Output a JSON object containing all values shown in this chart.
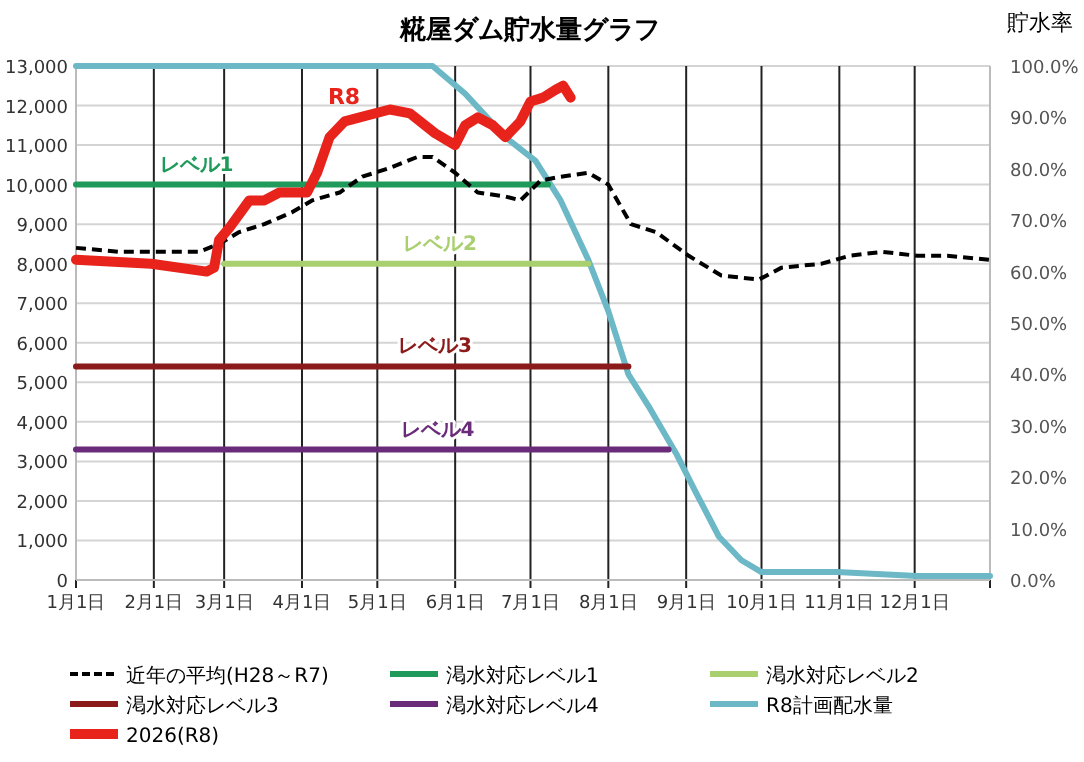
{
  "chart_data": {
    "type": "line",
    "title": "糀屋ダム貯水量グラフ",
    "y2label": "貯水率",
    "xlim": [
      "--01-01",
      "--12-31"
    ],
    "xticks": [
      {
        "value": "--01-01",
        "label": "1月1日"
      },
      {
        "value": "--02-01",
        "label": "2月1日"
      },
      {
        "value": "--03-01",
        "label": "3月1日"
      },
      {
        "value": "--04-01",
        "label": "4月1日"
      },
      {
        "value": "--05-01",
        "label": "5月1日"
      },
      {
        "value": "--06-01",
        "label": "6月1日"
      },
      {
        "value": "--07-01",
        "label": "7月1日"
      },
      {
        "value": "--08-01",
        "label": "8月1日"
      },
      {
        "value": "--09-01",
        "label": "9月1日"
      },
      {
        "value": "--10-01",
        "label": "10月1日"
      },
      {
        "value": "--11-01",
        "label": "11月1日"
      },
      {
        "value": "--12-01",
        "label": "12月1日"
      },
      {
        "value": "--12-31",
        "label": null
      }
    ],
    "ylim": [
      0,
      13000
    ],
    "yticks": [
      0,
      {
        "value": 1000,
        "label": "1,000"
      },
      {
        "value": 2000,
        "label": "2,000"
      },
      {
        "value": 3000,
        "label": "3,000"
      },
      {
        "value": 4000,
        "label": "4,000"
      },
      {
        "value": 5000,
        "label": "5,000"
      },
      {
        "value": 6000,
        "label": "6,000"
      },
      {
        "value": 7000,
        "label": "7,000"
      },
      {
        "value": 8000,
        "label": "8,000"
      },
      {
        "value": 9000,
        "label": "9,000"
      },
      {
        "value": 10000,
        "label": "10,000"
      },
      {
        "value": 11000,
        "label": "11,000"
      },
      {
        "value": 12000,
        "label": "12,000"
      },
      {
        "value": 13000,
        "label": "13,000"
      }
    ],
    "y2lim": [
      0,
      100
    ],
    "y2ticks": [
      {
        "value": 0,
        "label": "0.0%"
      },
      {
        "value": 10,
        "label": "10.0%"
      },
      {
        "value": 20,
        "label": "20.0%"
      },
      {
        "value": 30,
        "label": "30.0%"
      },
      {
        "value": 40,
        "label": "40.0%"
      },
      {
        "value": 50,
        "label": "50.0%"
      },
      {
        "value": 60,
        "label": "60.0%"
      },
      {
        "value": 70,
        "label": "70.0%"
      },
      {
        "value": 80,
        "label": "80.0%"
      },
      {
        "value": 90,
        "label": "90.0%"
      },
      {
        "value": 100,
        "label": "100.0%"
      }
    ],
    "grid": true,
    "legend": "bottom",
    "series": [
      {
        "name": "近年の平均(H28～R7)",
        "color": "#000000",
        "line_style": "dashed",
        "x": [
          "--01-01",
          "--01-18",
          "--02-19",
          "--02-27",
          "--03-07",
          "--03-17",
          "--03-28",
          "--04-05",
          "--04-16",
          "--04-25",
          "--05-05",
          "--05-17",
          "--05-23",
          "--06-01",
          "--06-10",
          "--06-21",
          "--06-27",
          "--07-05",
          "--07-13",
          "--07-24",
          "--08-01",
          "--08-10",
          "--08-20",
          "--09-02",
          "--09-15",
          "--09-30",
          "--10-09",
          "--10-25",
          "--11-05",
          "--11-18",
          "--12-02",
          "--12-14",
          "--12-31"
        ],
        "values": [
          8400,
          8300,
          8300,
          8500,
          8800,
          9000,
          9300,
          9600,
          9800,
          10200,
          10400,
          10700,
          10700,
          10300,
          9800,
          9700,
          9600,
          10100,
          10200,
          10300,
          10000,
          9000,
          8800,
          8200,
          7700,
          7600,
          7900,
          8000,
          8200,
          8300,
          8200,
          8200,
          8100
        ]
      },
      {
        "name": "渇水対応レベル1",
        "color": "#1f9a5a",
        "x": [
          "--01-01",
          "--07-08"
        ],
        "values": [
          10000,
          10000
        ]
      },
      {
        "name": "渇水対応レベル2",
        "color": "#a9cf6f",
        "x": [
          "--03-01",
          "--07-24"
        ],
        "values": [
          8000,
          8000
        ]
      },
      {
        "name": "渇水対応レベル3",
        "color": "#8b1a1a",
        "x": [
          "--01-01",
          "--08-09"
        ],
        "values": [
          5400,
          5400
        ]
      },
      {
        "name": "渇水対応レベル4",
        "color": "#6a2c7a",
        "x": [
          "--01-01",
          "--08-25"
        ],
        "values": [
          3300,
          3300
        ]
      },
      {
        "name": "R8計画配水量",
        "color": "#6cb8c6",
        "x": [
          "--01-01",
          "--05-23",
          "--06-05",
          "--06-21",
          "--07-03",
          "--07-13",
          "--07-24",
          "--08-01",
          "--08-09",
          "--08-17",
          "--08-28",
          "--09-05",
          "--09-14",
          "--09-23",
          "--10-01",
          "--10-31",
          "--12-02",
          "--12-31"
        ],
        "values": [
          13000,
          13000,
          12300,
          11200,
          10600,
          9600,
          8100,
          6800,
          5200,
          4400,
          3200,
          2200,
          1100,
          500,
          200,
          200,
          100,
          100
        ]
      },
      {
        "name": "2026(R8)",
        "color": "#e8231b",
        "x": [
          "--01-01",
          "--01-31",
          "--02-22",
          "--02-25",
          "--02-27",
          "--03-03",
          "--03-11",
          "--03-17",
          "--03-23",
          "--04-03",
          "--04-07",
          "--04-12",
          "--04-18",
          "--04-24",
          "--05-06",
          "--05-14",
          "--05-24",
          "--06-01",
          "--06-05",
          "--06-10",
          "--06-16",
          "--06-21",
          "--06-27",
          "--07-01",
          "--07-06",
          "--07-11",
          "--07-14",
          "--07-17"
        ],
        "values": [
          8100,
          8000,
          7800,
          7900,
          8600,
          8900,
          9600,
          9600,
          9800,
          9800,
          10300,
          11200,
          11600,
          11700,
          11900,
          11800,
          11300,
          11000,
          11500,
          11700,
          11500,
          11200,
          11600,
          12100,
          12200,
          12400,
          12500,
          12200
        ]
      }
    ],
    "annotations": [
      {
        "text": "レベル1",
        "x": "--02-18",
        "y": 10000
      },
      {
        "text": "レベル2",
        "x": "--05-26",
        "y": 8000
      },
      {
        "text": "レベル3",
        "x": "--05-24",
        "y": 5400
      },
      {
        "text": "レベル4",
        "x": "--05-25",
        "y": 3300
      },
      "R8"
    ]
  }
}
